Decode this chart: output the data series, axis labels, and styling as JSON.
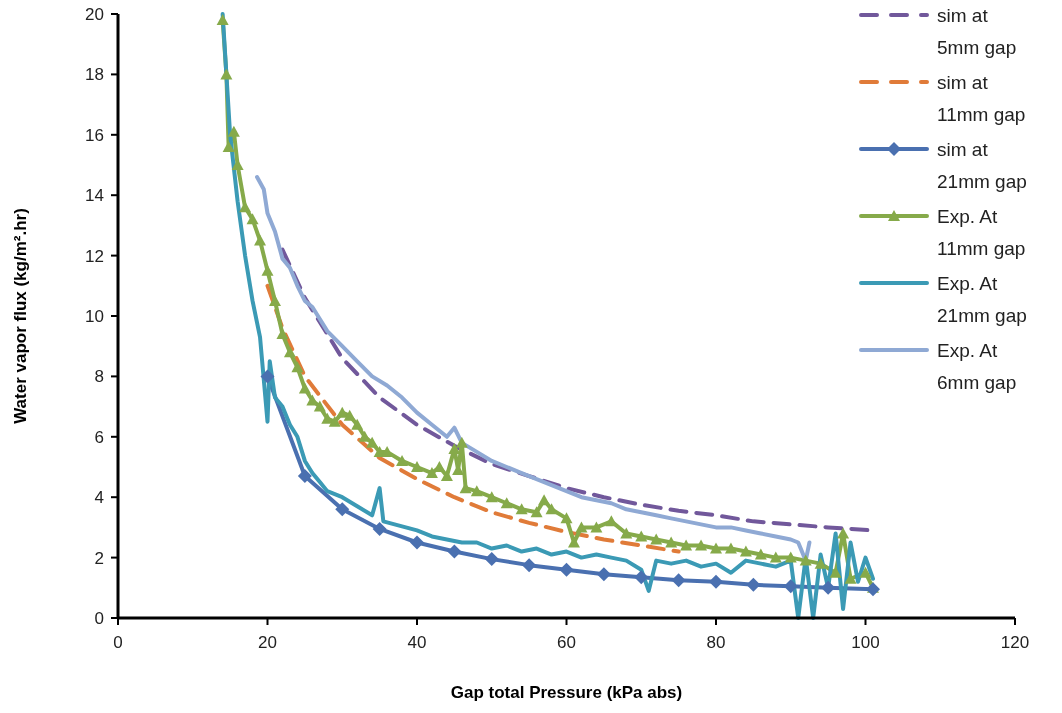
{
  "chart_data": {
    "type": "line",
    "xlabel": "Gap total Pressure (kPa abs)",
    "ylabel": "Water vapor flux (kg/m².hr)",
    "xlim": [
      0,
      120
    ],
    "xticks": [
      0,
      20,
      40,
      60,
      80,
      100,
      120
    ],
    "ylim": [
      0,
      20
    ],
    "yticks": [
      0,
      2,
      4,
      6,
      8,
      10,
      12,
      14,
      16,
      18,
      20
    ],
    "grid": false,
    "legend": "top right",
    "series": [
      {
        "name": "sim at 5mm gap",
        "color": "#71589b",
        "line_style": "dashed",
        "marker": "none",
        "x": [
          22,
          25,
          30,
          35,
          40,
          45,
          50,
          55,
          60,
          65,
          70,
          75,
          80,
          85,
          90,
          95,
          101
        ],
        "values": [
          12.2,
          10.6,
          8.6,
          7.3,
          6.4,
          5.7,
          5.1,
          4.7,
          4.3,
          4.0,
          3.75,
          3.55,
          3.4,
          3.2,
          3.1,
          3.0,
          2.9
        ]
      },
      {
        "name": "sim at 11mm gap",
        "color": "#e07b39",
        "line_style": "dashed",
        "marker": "none",
        "x": [
          20,
          22,
          25,
          30,
          35,
          40,
          45,
          50,
          55,
          60,
          65,
          70,
          75
        ],
        "values": [
          11,
          9.6,
          8,
          6.4,
          5.3,
          4.6,
          4.0,
          3.5,
          3.15,
          2.85,
          2.6,
          2.4,
          2.2
        ]
      },
      {
        "name": "sim at 21mm gap",
        "color": "#4a70b0",
        "line_style": "solid",
        "marker": "diamond",
        "x": [
          20,
          25,
          30,
          35,
          40,
          45,
          50,
          55,
          60,
          65,
          70,
          75,
          80,
          85,
          90,
          95,
          101
        ],
        "values": [
          8,
          4.7,
          3.6,
          2.95,
          2.5,
          2.2,
          1.95,
          1.75,
          1.6,
          1.45,
          1.35,
          1.25,
          1.2,
          1.1,
          1.05,
          1.0,
          0.95
        ]
      },
      {
        "name": "Exp. At 11mm gap",
        "color": "#86aa4a",
        "line_style": "solid",
        "marker": "triangle",
        "x": [
          14,
          14.5,
          14.8,
          15.5,
          16,
          17,
          18,
          19,
          20,
          21,
          22,
          23,
          24,
          25,
          26,
          27,
          28,
          29,
          30,
          31,
          32,
          33,
          34,
          35,
          36,
          38,
          40,
          42,
          43,
          44,
          45,
          45.5,
          46,
          46.5,
          48,
          50,
          52,
          54,
          56,
          57,
          58,
          60,
          61,
          62,
          64,
          66,
          68,
          70,
          72,
          74,
          76,
          78,
          80,
          82,
          84,
          86,
          88,
          90,
          92,
          94,
          96,
          97,
          98,
          100,
          101
        ],
        "values": [
          19.8,
          18,
          15.6,
          16.1,
          15,
          13.6,
          13.2,
          12.5,
          11.5,
          10.5,
          9.4,
          8.8,
          8.3,
          7.6,
          7.2,
          7.0,
          6.6,
          6.5,
          6.8,
          6.7,
          6.4,
          6.0,
          5.8,
          5.5,
          5.5,
          5.2,
          5.0,
          4.8,
          5.0,
          4.7,
          5.6,
          4.9,
          5.8,
          4.3,
          4.2,
          4.0,
          3.8,
          3.6,
          3.5,
          3.9,
          3.6,
          3.3,
          2.5,
          3.0,
          3.0,
          3.2,
          2.8,
          2.7,
          2.6,
          2.5,
          2.4,
          2.4,
          2.3,
          2.3,
          2.2,
          2.1,
          2.0,
          2.0,
          1.9,
          1.8,
          1.5,
          2.8,
          1.3,
          1.5,
          1.0
        ]
      },
      {
        "name": "Exp. At 21mm gap",
        "color": "#3b9ab5",
        "line_style": "solid",
        "marker": "none",
        "x": [
          14,
          14.5,
          15,
          16,
          17,
          18,
          19,
          19.5,
          20,
          20.3,
          21,
          22,
          23,
          24,
          25,
          26,
          27,
          28,
          30,
          32,
          34,
          35,
          35.5,
          37,
          40,
          42,
          44,
          46,
          48,
          50,
          52,
          54,
          56,
          58,
          60,
          62,
          64,
          66,
          68,
          70,
          71,
          72,
          74,
          76,
          78,
          80,
          82,
          84,
          86,
          88,
          90,
          91,
          92,
          93,
          94,
          95,
          96,
          97,
          98,
          99,
          100,
          101
        ],
        "values": [
          20,
          18,
          16,
          13.8,
          12,
          10.5,
          9.3,
          7.9,
          6.5,
          8.5,
          7.3,
          7,
          6.4,
          6.0,
          5.2,
          4.8,
          4.5,
          4.2,
          4.0,
          3.7,
          3.4,
          4.3,
          3.2,
          3.1,
          2.9,
          2.7,
          2.6,
          2.5,
          2.5,
          2.3,
          2.4,
          2.2,
          2.3,
          2.1,
          2.2,
          2.0,
          2.1,
          2.0,
          1.9,
          1.6,
          0.9,
          1.9,
          1.8,
          1.9,
          1.7,
          1.8,
          1.5,
          1.9,
          1.8,
          1.7,
          1.9,
          0,
          2.0,
          0,
          2.1,
          1.0,
          2.8,
          0.3,
          2.5,
          1.2,
          2.0,
          1.3
        ]
      },
      {
        "name": "Exp. At 6mm gap",
        "color": "#8fa9d4",
        "line_style": "solid",
        "marker": "none",
        "x": [
          18.6,
          19.5,
          20,
          21,
          22,
          23,
          24,
          25,
          26,
          27,
          28,
          30,
          32,
          34,
          36,
          38,
          40,
          42,
          44,
          45,
          46,
          48,
          50,
          52,
          54,
          56,
          58,
          60,
          62,
          64,
          66,
          68,
          70,
          72,
          74,
          76,
          78,
          80,
          82,
          84,
          86,
          88,
          90,
          91,
          92,
          92.5
        ],
        "values": [
          14.6,
          14.2,
          13.4,
          12.8,
          11.9,
          11.6,
          11.0,
          10.5,
          10.3,
          9.9,
          9.5,
          9.0,
          8.5,
          8.0,
          7.7,
          7.3,
          6.8,
          6.4,
          6.0,
          6.3,
          5.8,
          5.5,
          5.2,
          5.0,
          4.8,
          4.6,
          4.4,
          4.2,
          4.0,
          3.9,
          3.8,
          3.6,
          3.5,
          3.4,
          3.3,
          3.2,
          3.1,
          3.0,
          3.0,
          2.9,
          2.8,
          2.7,
          2.6,
          2.5,
          1.9,
          2.5
        ]
      }
    ]
  }
}
